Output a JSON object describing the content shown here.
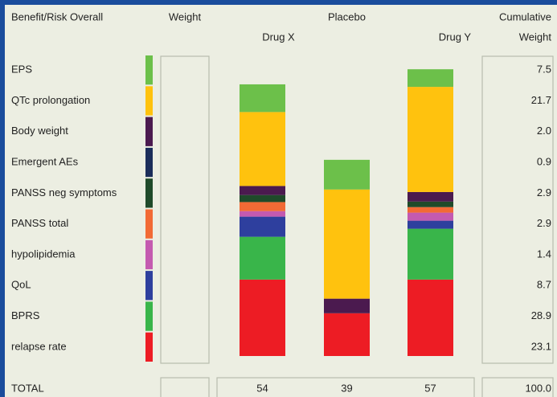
{
  "chart_data": {
    "type": "bar",
    "stacked": true,
    "header_criteria": "Benefit/Risk Overall",
    "header_weight": "Weight",
    "header_cumulative": [
      "Cumulative",
      "Weight"
    ],
    "categories": [
      "Drug X",
      "Placebo",
      "Drug Y"
    ],
    "series": [
      {
        "name": "EPS",
        "color": "#6cc04a",
        "values": [
          5.5,
          5.9,
          3.5
        ]
      },
      {
        "name": "QTc prolongation",
        "color": "#ffc20e",
        "values": [
          14.7,
          21.7,
          20.9
        ]
      },
      {
        "name": "Body weight",
        "color": "#4b1a4f",
        "values": [
          1.8,
          2.9,
          1.9
        ]
      },
      {
        "name": "Emergent AEs",
        "color": "#1b2d5a",
        "values": [
          0,
          0,
          0
        ]
      },
      {
        "name": "PANSS neg symptoms",
        "color": "#1f4a2a",
        "values": [
          1.4,
          0,
          1.1
        ]
      },
      {
        "name": "PANSS total",
        "color": "#f26a35",
        "values": [
          1.8,
          0,
          1.1
        ]
      },
      {
        "name": "hypolipidemia",
        "color": "#c45ab0",
        "values": [
          1.1,
          0,
          1.6
        ]
      },
      {
        "name": "QoL",
        "color": "#2e3f9e",
        "values": [
          4.0,
          0,
          1.6
        ]
      },
      {
        "name": "BPRS",
        "color": "#39b54a",
        "values": [
          8.5,
          0,
          10.1
        ]
      },
      {
        "name": "relapse rate",
        "color": "#ed1c24",
        "values": [
          15.2,
          8.5,
          15.2
        ]
      }
    ],
    "cumulative_weight": {
      "values": [
        7.5,
        21.7,
        2.0,
        0.9,
        2.9,
        2.9,
        1.4,
        8.7,
        28.9,
        23.1
      ],
      "value_labels": [
        "7.5",
        "21.7",
        "2.0",
        "0.9",
        "2.9",
        "2.9",
        "1.4",
        "8.7",
        "28.9",
        "23.1"
      ]
    },
    "total_label": "TOTAL",
    "totals": [
      54,
      39,
      57
    ],
    "total_weight": {
      "value": 100,
      "label": "100.0"
    }
  }
}
